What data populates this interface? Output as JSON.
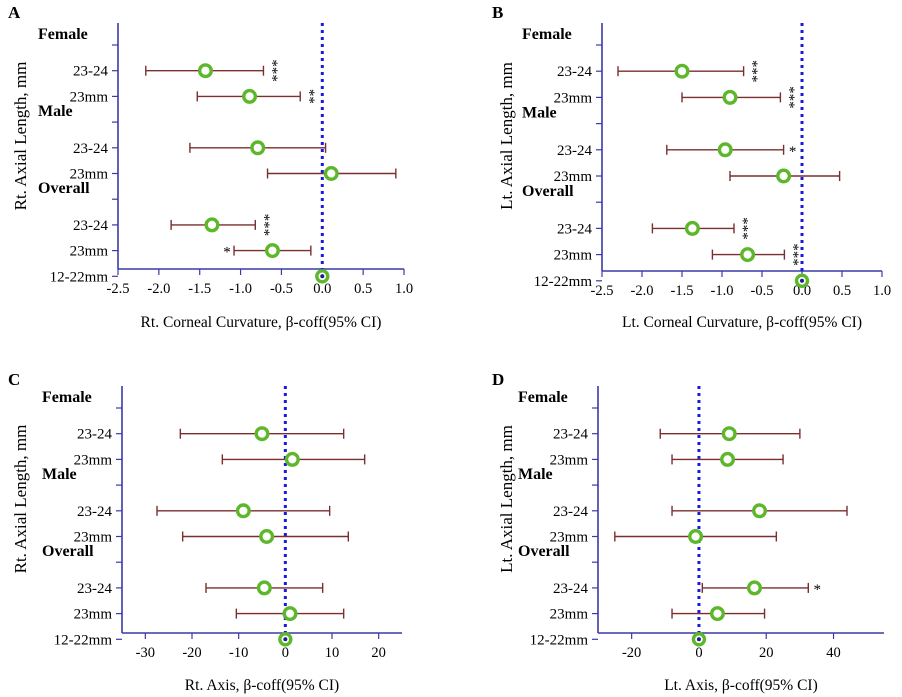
{
  "chart_data": [
    {
      "panel": "A",
      "type": "forest",
      "ylabel": "Rt. Axial Length, mm",
      "xlabel": "Rt. Corneal Curvature, β-coff(95% CI)",
      "xlim": [
        -2.5,
        1.0
      ],
      "xticks": [
        "-2.5",
        "-2.0",
        "-1.5",
        "-1.0",
        "-0.5",
        "0.0",
        "0.5",
        "1.0"
      ],
      "tick_values": [
        -2.5,
        -2.0,
        -1.5,
        -1.0,
        -0.5,
        0.0,
        0.5,
        1.0
      ],
      "reference_x": 0,
      "rows": [
        {
          "label": "Female",
          "heading": true
        },
        {
          "label": "23-24",
          "estimate": -1.43,
          "lower": -2.16,
          "upper": -0.72,
          "sig": "***"
        },
        {
          "label": "23mm",
          "estimate": -0.89,
          "lower": -1.53,
          "upper": -0.27,
          "sig": "**"
        },
        {
          "label": "Male",
          "heading": true
        },
        {
          "label": "23-24",
          "estimate": -0.79,
          "lower": -1.62,
          "upper": 0.04,
          "sig": ""
        },
        {
          "label": "23mm",
          "estimate": 0.11,
          "lower": -0.67,
          "upper": 0.9,
          "sig": ""
        },
        {
          "label": "Overall",
          "heading": true
        },
        {
          "label": "23-24",
          "estimate": -1.35,
          "lower": -1.85,
          "upper": -0.82,
          "sig": "***"
        },
        {
          "label": "23mm",
          "estimate": -0.61,
          "lower": -1.08,
          "upper": -0.14,
          "sig": "*"
        },
        {
          "label": "12-22mm",
          "estimate": 0,
          "lower": 0,
          "upper": 0,
          "sig": "",
          "reference": true
        }
      ]
    },
    {
      "panel": "B",
      "type": "forest",
      "ylabel": "Lt. Axial Length, mm",
      "xlabel": "Lt. Corneal Curvature, β-coff(95% CI)",
      "xlim": [
        -2.5,
        1.0
      ],
      "xticks": [
        "-2.5",
        "-2.0",
        "-1.5",
        "-1.0",
        "-0.5",
        "0.0",
        "0.5",
        "1.0"
      ],
      "tick_values": [
        -2.5,
        -2.0,
        -1.5,
        -1.0,
        -0.5,
        0.0,
        0.5,
        1.0
      ],
      "reference_x": 0,
      "rows": [
        {
          "label": "Female",
          "heading": true
        },
        {
          "label": "23-24",
          "estimate": -1.5,
          "lower": -2.3,
          "upper": -0.73,
          "sig": "***"
        },
        {
          "label": "23mm",
          "estimate": -0.9,
          "lower": -1.5,
          "upper": -0.27,
          "sig": "***"
        },
        {
          "label": "Male",
          "heading": true
        },
        {
          "label": "23-24",
          "estimate": -0.96,
          "lower": -1.69,
          "upper": -0.23,
          "sig": "*"
        },
        {
          "label": "23mm",
          "estimate": -0.23,
          "lower": -0.9,
          "upper": 0.47,
          "sig": ""
        },
        {
          "label": "Overall",
          "heading": true
        },
        {
          "label": "23-24",
          "estimate": -1.37,
          "lower": -1.87,
          "upper": -0.85,
          "sig": "***"
        },
        {
          "label": "23mm",
          "estimate": -0.68,
          "lower": -1.12,
          "upper": -0.22,
          "sig": "***"
        },
        {
          "label": "12-22mm",
          "estimate": 0,
          "lower": 0,
          "upper": 0,
          "sig": "",
          "reference": true
        }
      ]
    },
    {
      "panel": "C",
      "type": "forest",
      "ylabel": "Rt. Axial Length, mm",
      "xlabel": "Rt. Axis, β-coff(95% CI)",
      "xlim": [
        -35,
        25
      ],
      "xticks": [
        "-30",
        "-20",
        "-10",
        "0",
        "10",
        "20"
      ],
      "tick_values": [
        -30,
        -20,
        -10,
        0,
        10,
        20
      ],
      "reference_x": 0,
      "rows": [
        {
          "label": "Female",
          "heading": true
        },
        {
          "label": "23-24",
          "estimate": -5.0,
          "lower": -22.5,
          "upper": 12.5,
          "sig": ""
        },
        {
          "label": "23mm",
          "estimate": 1.5,
          "lower": -13.5,
          "upper": 17.0,
          "sig": ""
        },
        {
          "label": "Male",
          "heading": true
        },
        {
          "label": "23-24",
          "estimate": -9.0,
          "lower": -27.5,
          "upper": 9.5,
          "sig": ""
        },
        {
          "label": "23mm",
          "estimate": -4.0,
          "lower": -22.0,
          "upper": 13.5,
          "sig": ""
        },
        {
          "label": "Overall",
          "heading": true
        },
        {
          "label": "23-24",
          "estimate": -4.5,
          "lower": -17.0,
          "upper": 8.0,
          "sig": ""
        },
        {
          "label": "23mm",
          "estimate": 1.0,
          "lower": -10.5,
          "upper": 12.5,
          "sig": ""
        },
        {
          "label": "12-22mm",
          "estimate": 0,
          "lower": 0,
          "upper": 0,
          "sig": "",
          "reference": true
        }
      ]
    },
    {
      "panel": "D",
      "type": "forest",
      "ylabel": "Lt. Axial Length, mm",
      "xlabel": "Lt. Axis, β-coff(95% CI)",
      "xlim": [
        -30,
        55
      ],
      "xticks": [
        "-20",
        "0",
        "20",
        "40"
      ],
      "tick_values": [
        -20,
        0,
        20,
        40
      ],
      "reference_x": 0,
      "rows": [
        {
          "label": "Female",
          "heading": true
        },
        {
          "label": "23-24",
          "estimate": 9.0,
          "lower": -11.5,
          "upper": 30.0,
          "sig": ""
        },
        {
          "label": "23mm",
          "estimate": 8.5,
          "lower": -8.0,
          "upper": 25.0,
          "sig": ""
        },
        {
          "label": "Male",
          "heading": true
        },
        {
          "label": "23-24",
          "estimate": 18.0,
          "lower": -8.0,
          "upper": 44.0,
          "sig": ""
        },
        {
          "label": "23mm",
          "estimate": -1.0,
          "lower": -25.0,
          "upper": 23.0,
          "sig": ""
        },
        {
          "label": "Overall",
          "heading": true
        },
        {
          "label": "23-24",
          "estimate": 16.5,
          "lower": 1.0,
          "upper": 32.5,
          "sig": "*"
        },
        {
          "label": "23mm",
          "estimate": 5.5,
          "lower": -8.0,
          "upper": 19.5,
          "sig": ""
        },
        {
          "label": "12-22mm",
          "estimate": 0,
          "lower": 0,
          "upper": 0,
          "sig": "",
          "reference": true
        }
      ]
    }
  ]
}
